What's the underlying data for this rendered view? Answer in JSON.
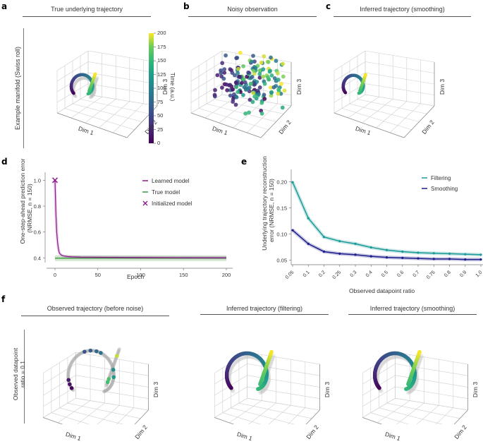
{
  "panels": {
    "a": {
      "label": "a",
      "title": "True underlying trajectory",
      "row_label": "Example manifold (Swiss roll)",
      "xlabel": "Dim 1",
      "ylabel": "Dim 2",
      "zlabel": "Dim 3"
    },
    "b": {
      "label": "b",
      "title": "Noisy observation",
      "xlabel": "Dim 1",
      "ylabel": "Dim 2",
      "zlabel": "Dim 3"
    },
    "c": {
      "label": "c",
      "title": "Inferred trajectory (smoothing)",
      "xlabel": "Dim 1",
      "ylabel": "Dim 2",
      "zlabel": "Dim 3"
    },
    "d": {
      "label": "d"
    },
    "e": {
      "label": "e"
    },
    "f": {
      "label": "f",
      "row_label_1": "Observed datapoint",
      "row_label_2": "ratio = 0.1",
      "subpanels": [
        {
          "title": "Observed trajectory (before noise)",
          "xlabel": "Dim 1",
          "ylabel": "Dim 2",
          "zlabel": "Dim 3"
        },
        {
          "title": "Inferred trajectory (filtering)",
          "xlabel": "Dim 1",
          "ylabel": "Dim 2",
          "zlabel": "Dim 3"
        },
        {
          "title": "Inferred trajectory (smoothing)",
          "xlabel": "Dim 1",
          "ylabel": "Dim 2",
          "zlabel": "Dim 3"
        }
      ]
    }
  },
  "colorbar": {
    "label": "Time (a.u.)",
    "ticks": [
      "0",
      "25",
      "50",
      "75",
      "100",
      "125",
      "150",
      "175",
      "200"
    ],
    "min": 0,
    "max": 200
  },
  "chart_data": [
    {
      "type": "line",
      "panel": "d",
      "title": "",
      "xlabel": "Epoch",
      "ylabel_1": "One-step-ahead prediction error",
      "ylabel_2": "(NRMSE, n = 150)",
      "xlim": [
        0,
        200
      ],
      "ylim": [
        0.38,
        1.04
      ],
      "xticks": [
        0,
        50,
        100,
        150,
        200
      ],
      "yticks": [
        0.4,
        0.6,
        0.8,
        1.0
      ],
      "ytick_labels": [
        "0.4",
        "0.6",
        "0.8",
        "1.0"
      ],
      "legend_position": "top-right",
      "series": [
        {
          "name": "Learned model",
          "color": "#8b1a8b",
          "x": [
            0,
            1,
            2,
            3,
            4,
            5,
            6,
            8,
            10,
            15,
            20,
            30,
            50,
            100,
            150,
            200
          ],
          "y": [
            1.0,
            0.75,
            0.6,
            0.52,
            0.47,
            0.44,
            0.43,
            0.42,
            0.415,
            0.41,
            0.408,
            0.406,
            0.405,
            0.403,
            0.402,
            0.401
          ]
        },
        {
          "name": "True model",
          "color": "#3a9a3a",
          "x": [
            0,
            200
          ],
          "y": [
            0.398,
            0.398
          ]
        },
        {
          "name": "Initialized model",
          "color": "#8b1a8b",
          "marker": "x",
          "x": [
            0
          ],
          "y": [
            1.0
          ]
        }
      ]
    },
    {
      "type": "line",
      "panel": "e",
      "xlabel": "Observed datapoint ratio",
      "ylabel_1": "Underlying trajectory reconstruction",
      "ylabel_2": "error (NRMSE, n = 150)",
      "categories": [
        "0.05",
        "0.1",
        "0.2",
        "0.25",
        "0.3",
        "0.4",
        "0.5",
        "0.6",
        "0.7",
        "0.75",
        "0.8",
        "0.9",
        "1.0"
      ],
      "ylim": [
        0.045,
        0.21
      ],
      "yticks": [
        0.05,
        0.1,
        0.15,
        0.2
      ],
      "ytick_labels": [
        "0.05",
        "0.10",
        "0.15",
        "0.20"
      ],
      "legend_position": "top-right",
      "series": [
        {
          "name": "Filtering",
          "color": "#1a9a96",
          "values": [
            0.199,
            0.13,
            0.094,
            0.086,
            0.081,
            0.074,
            0.069,
            0.066,
            0.064,
            0.063,
            0.062,
            0.061,
            0.06
          ]
        },
        {
          "name": "Smoothing",
          "color": "#1c1c8a",
          "values": [
            0.107,
            0.081,
            0.066,
            0.062,
            0.06,
            0.057,
            0.055,
            0.054,
            0.053,
            0.052,
            0.052,
            0.051,
            0.051
          ]
        }
      ]
    }
  ]
}
